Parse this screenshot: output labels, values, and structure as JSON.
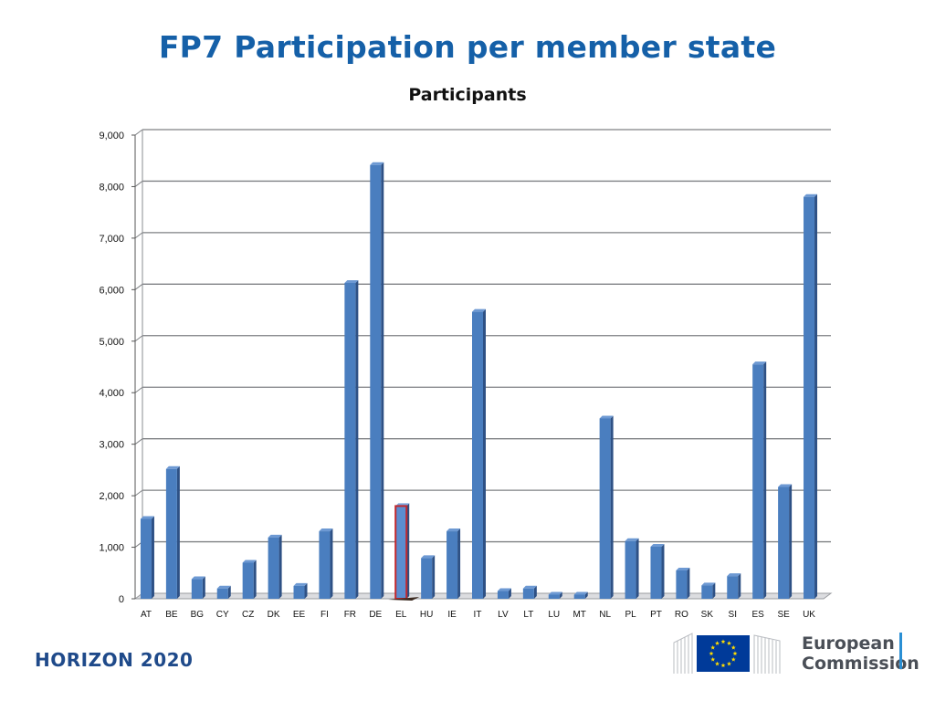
{
  "slide": {
    "title": "FP7 Participation per member state",
    "footer_brand": "HORIZON 2020",
    "logo_line1": "European",
    "logo_line2": "Commission"
  },
  "chart_data": {
    "type": "bar",
    "title": "Participants",
    "xlabel": "",
    "ylabel": "",
    "ylim": [
      0,
      9000
    ],
    "yticks": [
      0,
      1000,
      2000,
      3000,
      4000,
      5000,
      6000,
      7000,
      8000,
      9000
    ],
    "ytick_labels": [
      "0",
      "1,000",
      "2,000",
      "3,000",
      "4,000",
      "5,000",
      "6,000",
      "7,000",
      "8,000",
      "9,000"
    ],
    "grid": true,
    "legend": "none",
    "bar_color": "#4a7ebf",
    "highlight_color": "#c0272d",
    "highlight_category": "EL",
    "categories": [
      "AT",
      "BE",
      "BG",
      "CY",
      "CZ",
      "DK",
      "EE",
      "FI",
      "FR",
      "DE",
      "EL",
      "HU",
      "IE",
      "IT",
      "LV",
      "LT",
      "LU",
      "MT",
      "NL",
      "PL",
      "PT",
      "RO",
      "SK",
      "SI",
      "ES",
      "SE",
      "UK"
    ],
    "values": [
      1550,
      2520,
      380,
      200,
      700,
      1190,
      250,
      1310,
      6130,
      8420,
      1800,
      790,
      1310,
      5570,
      150,
      200,
      80,
      80,
      3500,
      1120,
      1010,
      550,
      260,
      440,
      4550,
      2170,
      7800
    ]
  }
}
